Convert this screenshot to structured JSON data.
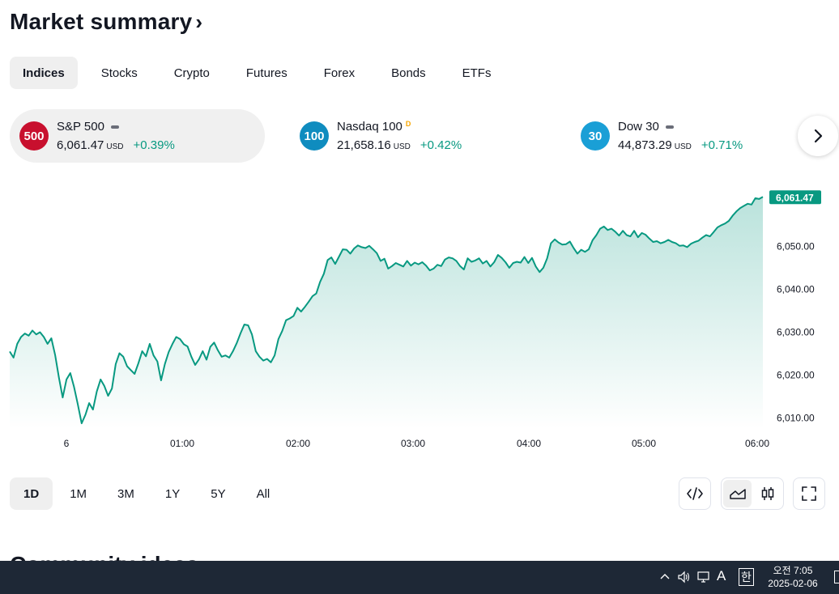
{
  "header": {
    "title": "Market summary",
    "chevron": "›"
  },
  "tabs": [
    {
      "label": "Indices",
      "active": true
    },
    {
      "label": "Stocks"
    },
    {
      "label": "Crypto"
    },
    {
      "label": "Futures"
    },
    {
      "label": "Forex"
    },
    {
      "label": "Bonds"
    },
    {
      "label": "ETFs"
    }
  ],
  "tickers": [
    {
      "badge": "500",
      "badge_color": "#c8102e",
      "name": "S&P 500",
      "marker": "dash",
      "value": "6,061.47",
      "currency": "USD",
      "change": "+0.39%",
      "active": true
    },
    {
      "badge": "100",
      "badge_color": "#0f8cbf",
      "name": "Nasdaq 100",
      "marker": "D",
      "value": "21,658.16",
      "currency": "USD",
      "change": "+0.42%"
    },
    {
      "badge": "30",
      "badge_color": "#1a9fd6",
      "name": "Dow 30",
      "marker": "dash",
      "value": "44,873.29",
      "currency": "USD",
      "change": "+0.71%"
    }
  ],
  "next_icon": "chevron-right-icon",
  "chart_data": {
    "type": "area",
    "line_color": "#089981",
    "x_ticks": [
      "6",
      "01:00",
      "02:00",
      "03:00",
      "04:00",
      "05:00",
      "06:00"
    ],
    "y_ticks": [
      "6,010.00",
      "6,020.00",
      "6,030.00",
      "6,040.00",
      "6,050.00"
    ],
    "ylim": [
      6007.5,
      6064
    ],
    "last_price_label": "6,061.47",
    "series": [
      {
        "values": [
          6025.5,
          6024.1,
          6027.3,
          6028.9,
          6029.7,
          6029.2,
          6030.4,
          6029.5,
          6030.0,
          6028.9,
          6027.3,
          6028.6,
          6024.7,
          6019.4,
          6014.8,
          6019.0,
          6020.5,
          6017.3,
          6013.2,
          6008.8,
          6010.8,
          6013.5,
          6012.0,
          6016.2,
          6019.0,
          6017.5,
          6015.2,
          6016.9,
          6022.6,
          6025.1,
          6024.3,
          6022.1,
          6021.2,
          6020.3,
          6022.8,
          6025.6,
          6024.4,
          6027.3,
          6024.6,
          6023.2,
          6018.8,
          6022.6,
          6025.4,
          6027.3,
          6028.9,
          6028.4,
          6027.2,
          6026.7,
          6024.3,
          6022.4,
          6023.7,
          6025.6,
          6023.6,
          6026.6,
          6027.6,
          6025.8,
          6024.3,
          6024.6,
          6024.1,
          6025.6,
          6027.5,
          6029.8,
          6031.8,
          6031.6,
          6029.5,
          6025.6,
          6024.3,
          6023.4,
          6023.8,
          6023.0,
          6024.6,
          6028.4,
          6030.3,
          6032.8,
          6033.2,
          6033.8,
          6035.7,
          6034.8,
          6035.9,
          6037.1,
          6038.4,
          6039.0,
          6041.7,
          6043.6,
          6046.8,
          6047.4,
          6045.9,
          6047.6,
          6049.3,
          6049.2,
          6048.3,
          6049.5,
          6050.2,
          6049.8,
          6049.6,
          6050.1,
          6049.3,
          6048.4,
          6046.6,
          6047.1,
          6044.8,
          6045.4,
          6046.1,
          6045.7,
          6045.3,
          6046.6,
          6045.5,
          6046.2,
          6045.8,
          6046.3,
          6045.5,
          6044.4,
          6044.8,
          6045.7,
          6045.4,
          6046.9,
          6047.4,
          6047.2,
          6046.6,
          6045.4,
          6044.6,
          6047.2,
          6046.4,
          6046.7,
          6047.2,
          6046.0,
          6046.6,
          6045.3,
          6046.3,
          6048.0,
          6047.3,
          6046.3,
          6045.0,
          6046.1,
          6046.4,
          6046.2,
          6047.5,
          6046.1,
          6047.3,
          6045.3,
          6044.0,
          6045.0,
          6047.2,
          6050.7,
          6051.6,
          6050.9,
          6050.4,
          6050.5,
          6051.1,
          6049.6,
          6048.3,
          6049.2,
          6048.7,
          6049.3,
          6051.4,
          6052.6,
          6054.1,
          6054.6,
          6053.8,
          6054.1,
          6053.4,
          6052.5,
          6053.6,
          6052.6,
          6052.3,
          6053.6,
          6052.1,
          6053.1,
          6052.7,
          6051.8,
          6051.0,
          6051.2,
          6050.7,
          6051.0,
          6051.5,
          6051.0,
          6050.7,
          6050.1,
          6050.2,
          6049.8,
          6050.6,
          6051.0,
          6051.3,
          6052.0,
          6052.6,
          6052.3,
          6053.3,
          6054.4,
          6054.9,
          6055.3,
          6055.9,
          6057.1,
          6058.1,
          6058.9,
          6059.4,
          6059.9,
          6059.7,
          6061.2,
          6061.0,
          6061.5
        ]
      }
    ]
  },
  "ranges": [
    {
      "label": "1D",
      "active": true
    },
    {
      "label": "1M"
    },
    {
      "label": "3M"
    },
    {
      "label": "1Y"
    },
    {
      "label": "5Y"
    },
    {
      "label": "All"
    }
  ],
  "tools": {
    "embed_icon": "code-icon",
    "area_icon": "area-chart-icon",
    "candles_icon": "candlestick-icon",
    "fullscreen_icon": "fullscreen-icon"
  },
  "peek_text": "Community ideas",
  "taskbar": {
    "ime_latin": "A",
    "ime_korean": "한",
    "time": "오전 7:05",
    "date": "2025-02-06"
  }
}
